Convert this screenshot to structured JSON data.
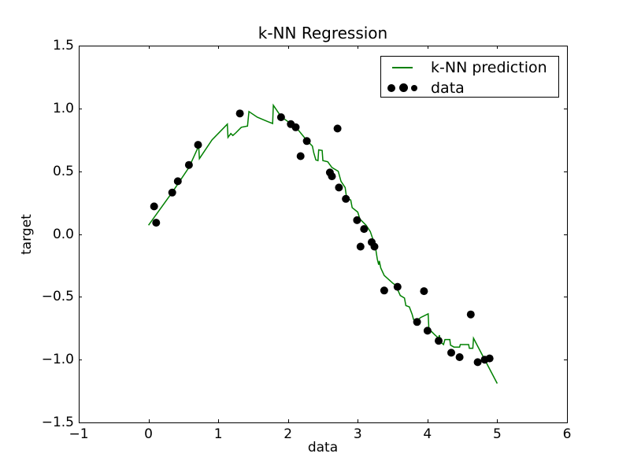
{
  "figure": {
    "title": "k-NN Regression",
    "xlabel": "data",
    "ylabel": "target"
  },
  "legend": {
    "position": "upper right",
    "items": [
      {
        "type": "line",
        "label": "k-NN prediction",
        "color": "#008000"
      },
      {
        "type": "scatter",
        "label": "data",
        "color": "#000000"
      }
    ]
  },
  "colors": {
    "line": "#008000",
    "marker": "#000000",
    "axis": "#000000",
    "background": "#ffffff"
  },
  "chart_data": {
    "type": "line",
    "title": "k-NN Regression",
    "xlabel": "data",
    "ylabel": "target",
    "xlim": [
      -1,
      6
    ],
    "ylim": [
      -1.5,
      1.5
    ],
    "grid": false,
    "legend_position": "upper right",
    "xticks": {
      "values": [
        -1,
        0,
        1,
        2,
        3,
        4,
        5,
        6
      ],
      "labels": [
        "−1",
        "0",
        "1",
        "2",
        "3",
        "4",
        "5",
        "6"
      ]
    },
    "yticks": {
      "values": [
        -1.5,
        -1.0,
        -0.5,
        0.0,
        0.5,
        1.0,
        1.5
      ],
      "labels": [
        "−1.5",
        "−1.0",
        "−0.5",
        "0.0",
        "0.5",
        "1.0",
        "1.5"
      ]
    },
    "series": [
      {
        "name": "k-NN prediction",
        "type": "line",
        "color": "#008000",
        "points": [
          [
            0.0,
            0.07
          ],
          [
            0.35,
            0.34
          ],
          [
            0.58,
            0.53
          ],
          [
            0.72,
            0.7
          ],
          [
            0.73,
            0.6
          ],
          [
            0.91,
            0.75
          ],
          [
            1.13,
            0.875
          ],
          [
            1.14,
            0.77
          ],
          [
            1.18,
            0.8
          ],
          [
            1.21,
            0.785
          ],
          [
            1.25,
            0.805
          ],
          [
            1.33,
            0.85
          ],
          [
            1.42,
            0.86
          ],
          [
            1.44,
            0.975
          ],
          [
            1.56,
            0.93
          ],
          [
            1.71,
            0.895
          ],
          [
            1.78,
            0.88
          ],
          [
            1.79,
            1.025
          ],
          [
            1.9,
            0.935
          ],
          [
            2.05,
            0.875
          ],
          [
            2.13,
            0.84
          ],
          [
            2.27,
            0.745
          ],
          [
            2.35,
            0.7
          ],
          [
            2.37,
            0.645
          ],
          [
            2.4,
            0.59
          ],
          [
            2.43,
            0.585
          ],
          [
            2.44,
            0.67
          ],
          [
            2.49,
            0.665
          ],
          [
            2.5,
            0.585
          ],
          [
            2.57,
            0.575
          ],
          [
            2.63,
            0.53
          ],
          [
            2.72,
            0.5
          ],
          [
            2.75,
            0.44
          ],
          [
            2.76,
            0.42
          ],
          [
            2.82,
            0.37
          ],
          [
            2.84,
            0.29
          ],
          [
            2.9,
            0.27
          ],
          [
            2.92,
            0.21
          ],
          [
            3.0,
            0.175
          ],
          [
            3.03,
            0.12
          ],
          [
            3.12,
            0.07
          ],
          [
            3.18,
            0.02
          ],
          [
            3.21,
            -0.03
          ],
          [
            3.25,
            -0.09
          ],
          [
            3.28,
            -0.2
          ],
          [
            3.3,
            -0.245
          ],
          [
            3.31,
            -0.215
          ],
          [
            3.33,
            -0.27
          ],
          [
            3.38,
            -0.33
          ],
          [
            3.46,
            -0.37
          ],
          [
            3.5,
            -0.39
          ],
          [
            3.55,
            -0.41
          ],
          [
            3.57,
            -0.44
          ],
          [
            3.61,
            -0.49
          ],
          [
            3.67,
            -0.51
          ],
          [
            3.69,
            -0.57
          ],
          [
            3.74,
            -0.58
          ],
          [
            3.78,
            -0.64
          ],
          [
            3.8,
            -0.68
          ],
          [
            3.85,
            -0.69
          ],
          [
            3.9,
            -0.665
          ],
          [
            4.01,
            -0.635
          ],
          [
            4.02,
            -0.755
          ],
          [
            4.1,
            -0.8
          ],
          [
            4.16,
            -0.83
          ],
          [
            4.17,
            -0.805
          ],
          [
            4.19,
            -0.86
          ],
          [
            4.23,
            -0.88
          ],
          [
            4.25,
            -0.84
          ],
          [
            4.32,
            -0.84
          ],
          [
            4.33,
            -0.885
          ],
          [
            4.38,
            -0.9
          ],
          [
            4.46,
            -0.9
          ],
          [
            4.47,
            -0.88
          ],
          [
            4.59,
            -0.88
          ],
          [
            4.6,
            -0.91
          ],
          [
            4.65,
            -0.91
          ],
          [
            4.66,
            -0.83
          ],
          [
            5.0,
            -1.19
          ]
        ]
      },
      {
        "name": "data",
        "type": "scatter",
        "color": "#000000",
        "marker_radius": 5,
        "points": [
          [
            0.08,
            0.22
          ],
          [
            0.11,
            0.09
          ],
          [
            0.34,
            0.33
          ],
          [
            0.42,
            0.42
          ],
          [
            0.58,
            0.55
          ],
          [
            0.71,
            0.71
          ],
          [
            1.31,
            0.96
          ],
          [
            1.9,
            0.93
          ],
          [
            2.04,
            0.875
          ],
          [
            2.11,
            0.85
          ],
          [
            2.18,
            0.62
          ],
          [
            2.27,
            0.74
          ],
          [
            2.6,
            0.49
          ],
          [
            2.63,
            0.46
          ],
          [
            2.71,
            0.84
          ],
          [
            2.73,
            0.37
          ],
          [
            2.83,
            0.28
          ],
          [
            2.99,
            0.11
          ],
          [
            3.04,
            -0.1
          ],
          [
            3.09,
            0.04
          ],
          [
            3.2,
            -0.065
          ],
          [
            3.24,
            -0.1
          ],
          [
            3.38,
            -0.45
          ],
          [
            3.57,
            -0.42
          ],
          [
            3.85,
            -0.7
          ],
          [
            3.95,
            -0.455
          ],
          [
            4.0,
            -0.77
          ],
          [
            4.16,
            -0.85
          ],
          [
            4.34,
            -0.945
          ],
          [
            4.46,
            -0.98
          ],
          [
            4.62,
            -0.64
          ],
          [
            4.72,
            -1.02
          ],
          [
            4.82,
            -1.0
          ],
          [
            4.89,
            -0.99
          ]
        ]
      }
    ]
  }
}
